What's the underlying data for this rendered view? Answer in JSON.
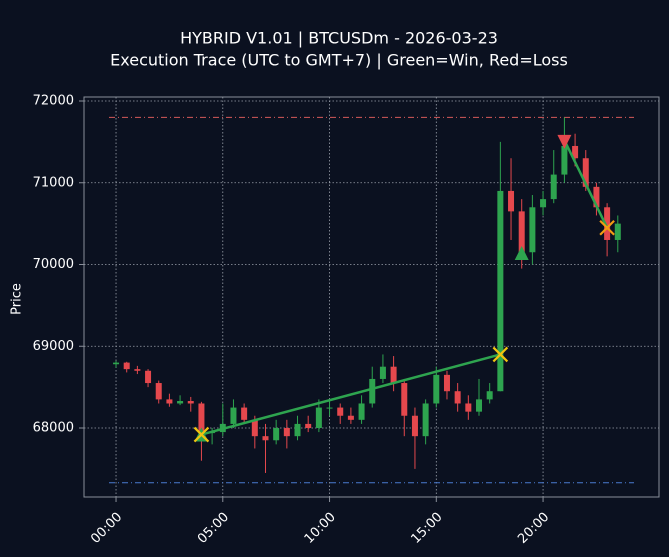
{
  "chart_data": {
    "type": "candlestick",
    "title": "HYBRID V1.01 | BTCUSDm - 2026-03-23",
    "subtitle": "Execution Trace (UTC to GMT+7) | Green=Win, Red=Loss",
    "y_label": "Price",
    "x": [
      0,
      0.5,
      1,
      1.5,
      2,
      2.5,
      3,
      3.5,
      4,
      4.5,
      5,
      5.5,
      6,
      6.5,
      7,
      7.5,
      8,
      8.5,
      9,
      9.5,
      10,
      10.5,
      11,
      11.5,
      12,
      12.5,
      13,
      13.5,
      14,
      14.5,
      15,
      15.5,
      16,
      16.5,
      17,
      17.5,
      18,
      18.5,
      19,
      19.5,
      20,
      20.5,
      21,
      21.5,
      22,
      22.5,
      23,
      23.5
    ],
    "open": [
      68780,
      68800,
      68720,
      68700,
      68550,
      68350,
      68300,
      68330,
      68300,
      67950,
      67950,
      68050,
      68250,
      68100,
      67900,
      67850,
      68000,
      67900,
      68050,
      68000,
      68250,
      68250,
      68150,
      68100,
      68300,
      68600,
      68750,
      68550,
      68150,
      67900,
      68300,
      68650,
      68450,
      68300,
      68200,
      68350,
      68450,
      70900,
      70650,
      70150,
      70700,
      70800,
      71100,
      71450,
      71300,
      70950,
      70700,
      70300
    ],
    "high": [
      68820,
      68810,
      68760,
      68720,
      68580,
      68420,
      68400,
      68380,
      68320,
      68000,
      68300,
      68350,
      68300,
      68150,
      68050,
      68100,
      68100,
      68150,
      68150,
      68350,
      68350,
      68300,
      68250,
      68400,
      68750,
      68900,
      68880,
      68600,
      68250,
      68350,
      68750,
      68700,
      68550,
      68400,
      68600,
      68550,
      71500,
      71300,
      70800,
      70850,
      70900,
      71400,
      71800,
      71600,
      71400,
      71000,
      70750,
      70600
    ],
    "low": [
      68740,
      68680,
      68660,
      68500,
      68300,
      68260,
      68280,
      68200,
      67600,
      67800,
      67900,
      68000,
      68050,
      67750,
      67450,
      67800,
      67750,
      67850,
      67950,
      67950,
      68150,
      68050,
      68050,
      68050,
      68250,
      68550,
      68450,
      67900,
      67500,
      67800,
      68250,
      68350,
      68200,
      68100,
      68150,
      68300,
      68450,
      70300,
      69950,
      70000,
      70600,
      70750,
      71000,
      71200,
      70900,
      70600,
      70100,
      70150
    ],
    "close": [
      68800,
      68720,
      68700,
      68550,
      68350,
      68300,
      68330,
      68300,
      67950,
      67950,
      68050,
      68250,
      68100,
      67900,
      67850,
      68000,
      67900,
      68050,
      68000,
      68250,
      68250,
      68150,
      68100,
      68300,
      68600,
      68750,
      68550,
      68150,
      67900,
      68300,
      68650,
      68450,
      68300,
      68200,
      68350,
      68450,
      70900,
      70650,
      70150,
      70700,
      70800,
      71100,
      71450,
      71300,
      70950,
      70700,
      70300,
      70500
    ],
    "up_color": "#2ea44f",
    "down_color": "#e5484d",
    "xlim": [
      -1.5,
      25.43
    ],
    "xticks": [
      {
        "value": 0,
        "label": "00:00"
      },
      {
        "value": 5,
        "label": "05:00"
      },
      {
        "value": 10,
        "label": "10:00"
      },
      {
        "value": 15,
        "label": "15:00"
      },
      {
        "value": 20,
        "label": "20:00"
      }
    ],
    "ylim": [
      67156,
      72049
    ],
    "yticks": [
      68000,
      69000,
      70000,
      71000,
      72000
    ],
    "grid": true,
    "hlines": [
      {
        "y": 71800,
        "color": "#d65a5a"
      },
      {
        "y": 67330,
        "color": "#4a7bd0"
      }
    ],
    "trades": [
      {
        "entry_x": 4,
        "entry_price": 67920,
        "exit_x": 18,
        "exit_price": 68900,
        "color": "#2ea44f"
      },
      {
        "entry_x": 21,
        "entry_price": 71520,
        "exit_x": 23,
        "exit_price": 70450,
        "color": "#2ea44f"
      }
    ],
    "markers": [
      {
        "x": 4,
        "y": 67920,
        "shape": "triangle-up",
        "color": "#2ea44f"
      },
      {
        "x": 4,
        "y": 67920,
        "shape": "x",
        "color": "#f1c40f"
      },
      {
        "x": 18,
        "y": 68900,
        "shape": "x",
        "color": "#f1c40f"
      },
      {
        "x": 19,
        "y": 70140,
        "shape": "triangle-up",
        "color": "#2ea44f"
      },
      {
        "x": 21,
        "y": 71500,
        "shape": "triangle-down",
        "color": "#e5484d"
      },
      {
        "x": 23,
        "y": 70450,
        "shape": "x",
        "color": "#f39c12"
      }
    ]
  }
}
